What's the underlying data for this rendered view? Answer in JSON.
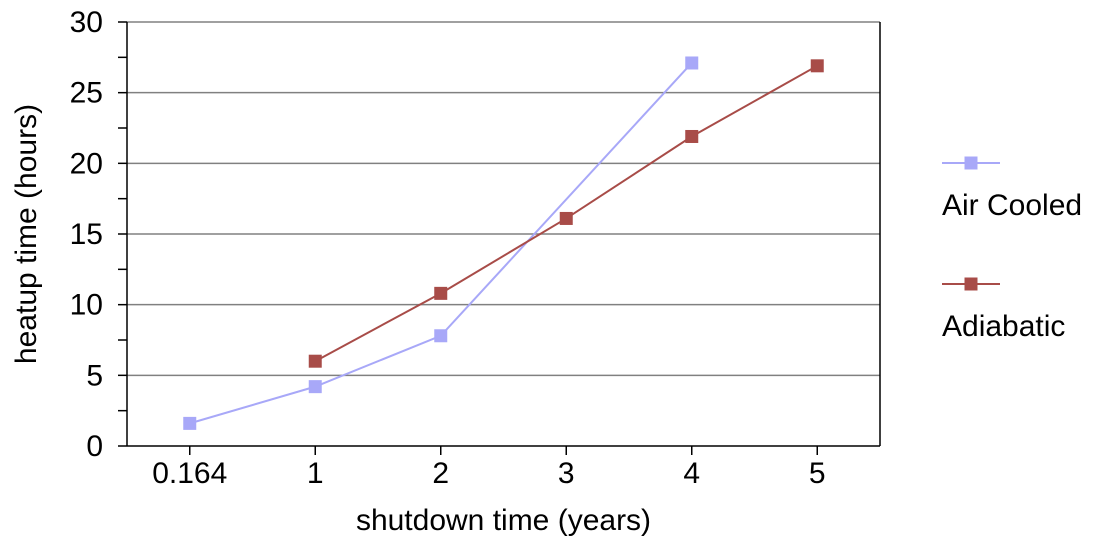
{
  "chart_data": {
    "type": "line",
    "title": "",
    "xlabel": "shutdown time (years)",
    "ylabel": "heatup time (hours)",
    "categories": [
      "0.164",
      "1",
      "2",
      "3",
      "4",
      "5"
    ],
    "ylim": [
      0,
      30
    ],
    "yticks": [
      "0",
      "5",
      "10",
      "15",
      "20",
      "25",
      "30"
    ],
    "ymajor_step": 5,
    "yminor_step": 2.5,
    "grid": "horizontal",
    "legend": "right",
    "series": [
      {
        "name": "Air Cooled",
        "color": "#a8a8f8",
        "marker": "square",
        "values": [
          1.6,
          4.2,
          7.8,
          null,
          27.1,
          null
        ]
      },
      {
        "name": "Adiabatic",
        "color": "#a84c48",
        "marker": "square",
        "values": [
          null,
          6.0,
          10.8,
          16.1,
          21.9,
          26.9
        ]
      }
    ]
  }
}
